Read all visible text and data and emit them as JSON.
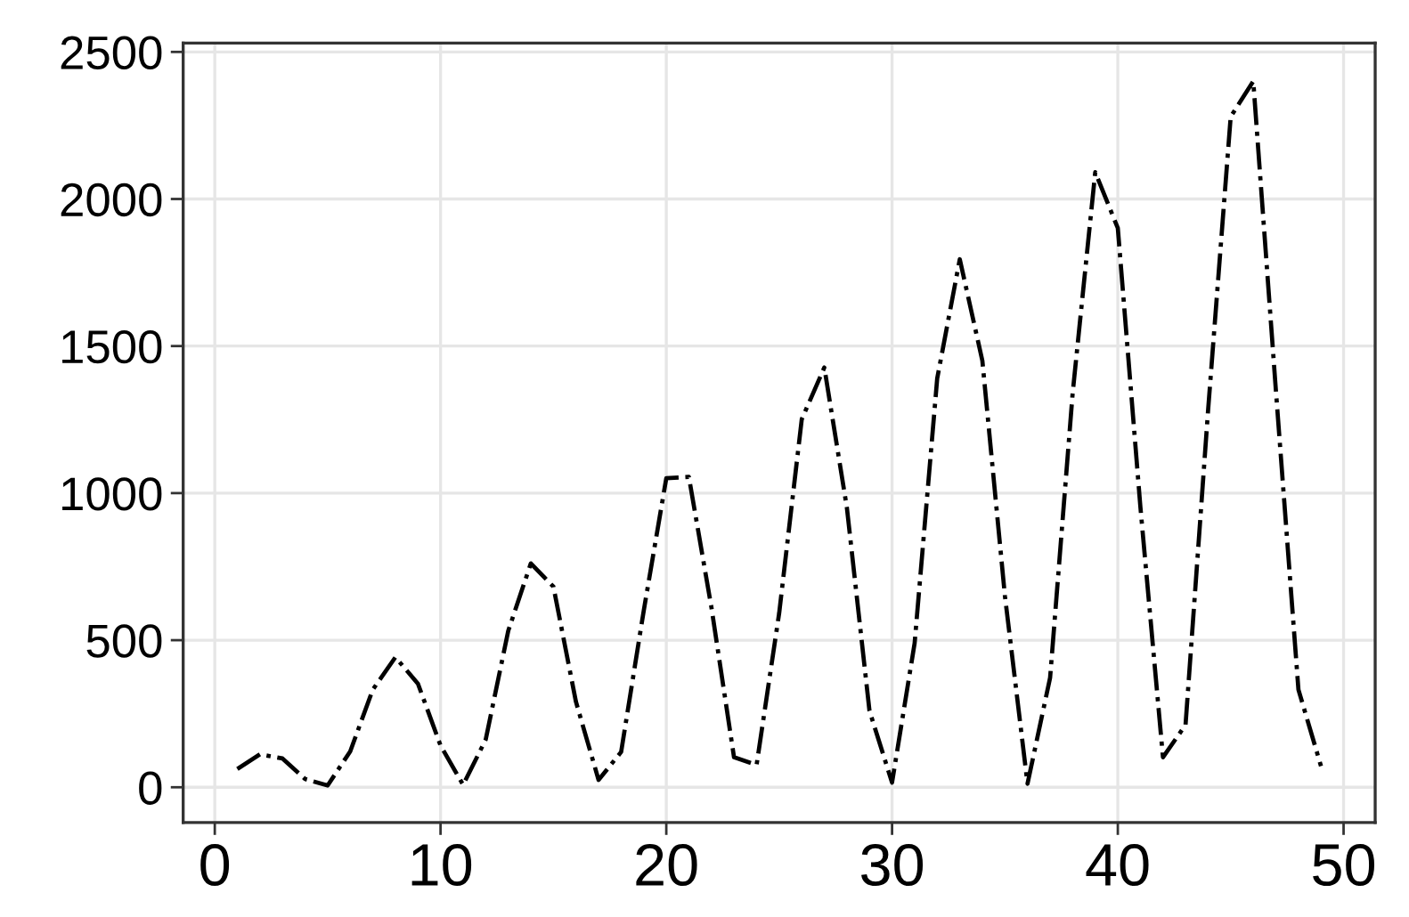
{
  "chart_data": {
    "type": "line",
    "x": [
      1,
      2,
      3,
      4,
      5,
      6,
      7,
      8,
      9,
      10,
      11,
      12,
      13,
      14,
      15,
      16,
      17,
      18,
      19,
      20,
      21,
      22,
      23,
      24,
      25,
      26,
      27,
      28,
      29,
      30,
      31,
      32,
      33,
      34,
      35,
      36,
      37,
      38,
      39,
      40,
      41,
      42,
      43,
      44,
      45,
      46,
      47,
      48,
      49
    ],
    "series": [
      {
        "color": "#000000",
        "values": [
          62,
          112,
          98,
          28,
          6,
          122,
          332,
          442,
          352,
          142,
          8,
          162,
          532,
          761,
          682,
          290,
          25,
          120,
          600,
          1051,
          1055,
          611,
          102,
          76,
          592,
          1251,
          1427,
          950,
          260,
          16,
          490,
          1390,
          1795,
          1450,
          650,
          12,
          372,
          1340,
          2091,
          1901,
          953,
          102,
          212,
          1283,
          2280,
          2400,
          1351,
          332,
          72
        ]
      }
    ],
    "line_style": "dashdot",
    "xlim": [
      -1.4,
      51.4
    ],
    "xticks": [
      0,
      10,
      20,
      30,
      40,
      50
    ],
    "ylim": [
      -120,
      2530
    ],
    "yticks": [
      0,
      500,
      1000,
      1500,
      2000,
      2500
    ],
    "grid": true
  }
}
